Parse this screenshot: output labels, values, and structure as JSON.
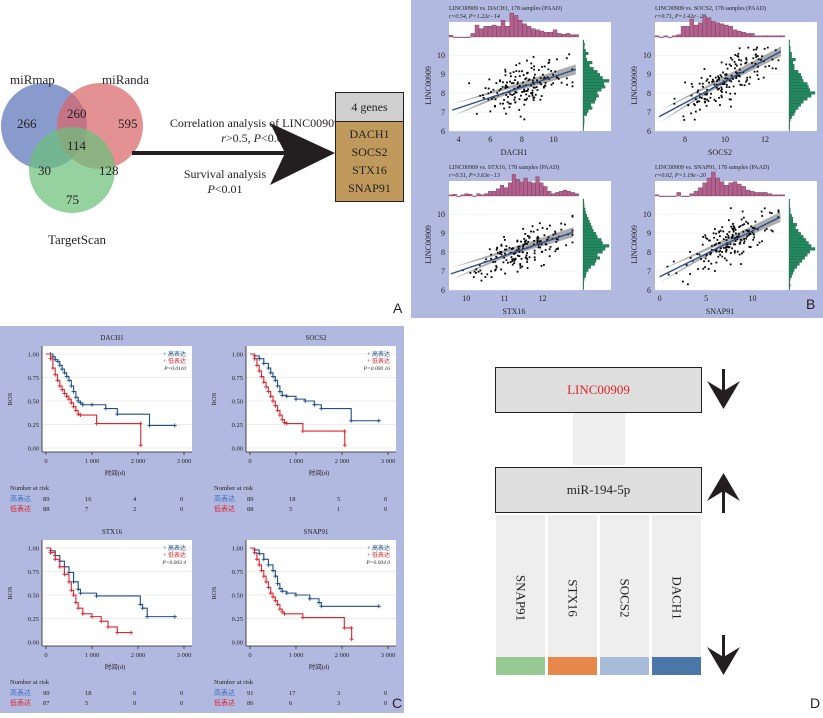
{
  "panel_labels": {
    "A": "A",
    "B": "B",
    "C": "C",
    "D": "D"
  },
  "colors": {
    "panel_bg": "#b1b9e1",
    "venn_mirmap": "#5b74b8",
    "venn_miranda": "#d9676b",
    "venn_targetscan": "#6cc07c",
    "gene_box_header": "#cfcfcf",
    "gene_box_body": "#c09a5c",
    "scatter_hist_top": "#b4608e",
    "scatter_hist_right": "#1f8a5e",
    "regression_line": "#2e4e8c",
    "km_high": "#1d4f87",
    "km_low": "#e0242b",
    "lnc_text": "#e0242b",
    "bar_snap91": "#97c994",
    "bar_stx16": "#e8874a",
    "bar_socs2": "#a6bcd8",
    "bar_dach1": "#4a77a8"
  },
  "panelA": {
    "venn": {
      "sets": [
        "miRmap",
        "miRanda",
        "TargetScan"
      ],
      "regions": {
        "miRmap_only": "266",
        "miRanda_only": "595",
        "TargetScan_only": "75",
        "miRmap_miRanda": "260",
        "miRmap_TargetScan": "30",
        "miRanda_TargetScan": "128",
        "all_three": "114"
      }
    },
    "arrow_text_top_line1": "Correlation analysis of LINC00909",
    "arrow_text_top_line2_r": "r",
    "arrow_text_top_line2_rest": ">0.5, ",
    "arrow_text_top_line2_p": "P",
    "arrow_text_top_line2_end": "<0.01",
    "arrow_text_bottom_line1": "Survival analysis",
    "arrow_text_bottom_line2_p": "P",
    "arrow_text_bottom_line2_end": "<0.01",
    "gene_box": {
      "header": "4 genes",
      "genes": [
        "DACH1",
        "SOCS2",
        "STX16",
        "SNAP91"
      ]
    }
  },
  "chart_data": [
    {
      "type": "venn",
      "id": "A-venn",
      "sets": [
        "miRmap",
        "miRanda",
        "TargetScan"
      ],
      "values": {
        "miRmap": 266,
        "miRanda": 595,
        "TargetScan": 75,
        "miRmap&miRanda": 260,
        "miRmap&TargetScan": 30,
        "miRanda&TargetScan": 128,
        "miRmap&miRanda&TargetScan": 114
      }
    },
    {
      "type": "scatter",
      "id": "B1",
      "title": "LINC00909 vs. DACH1, 178 samples (PAAD)",
      "subtitle_r": "r=0.54, ",
      "subtitle_p": "P=1.22e−14",
      "xlabel": "DACH1",
      "ylabel": "LINC00909",
      "xlim": [
        3.4,
        11.6
      ],
      "ylim": [
        6,
        10.8
      ],
      "xticks": [
        "4",
        "6",
        "8",
        "10"
      ],
      "xtick_values": [
        4,
        6,
        8,
        10
      ],
      "yticks": [
        "6",
        "7",
        "8",
        "9",
        "10"
      ],
      "ytick_values": [
        6,
        7,
        8,
        9,
        10
      ],
      "regression": {
        "x": [
          3.6,
          11.4
        ],
        "y": [
          7.1,
          9.25
        ]
      },
      "top_hist": [
        0.08,
        0,
        0,
        0,
        0,
        0.15,
        0.5,
        0.35,
        0.45,
        0.45,
        0.5,
        0.45,
        0.7,
        0.45,
        1.0,
        0.9,
        0.7,
        0.55,
        0.45,
        0.35,
        0.3,
        0.25,
        0.2,
        0.2,
        0.3,
        0.15,
        0.12,
        0.15,
        0.1,
        0.1
      ],
      "right_hist": [
        0.02,
        0.03,
        0.04,
        0.05,
        0.04,
        0.15,
        0.2,
        0.35,
        0.3,
        0.45,
        0.5,
        0.6,
        0.55,
        0.7,
        0.85,
        0.8,
        1.0,
        0.75,
        0.65,
        0.55,
        0.4,
        0.25,
        0.35,
        0.15,
        0.1,
        0.2,
        0.1,
        0.05,
        0.06,
        0.03
      ]
    },
    {
      "type": "scatter",
      "id": "B2",
      "title": "LINC00909 vs. SOCS2, 178 samples (PAAD)",
      "subtitle_r": "r=0.71, ",
      "subtitle_p": "P=1.42e−28",
      "xlabel": "SOCS2",
      "ylabel": "LINC00909",
      "xlim": [
        6.5,
        13.0
      ],
      "ylim": [
        6,
        10.8
      ],
      "xticks": [
        "8",
        "10",
        "12"
      ],
      "xtick_values": [
        8,
        10,
        12
      ],
      "yticks": [
        "6",
        "7",
        "8",
        "9",
        "10"
      ],
      "ytick_values": [
        6,
        7,
        8,
        9,
        10
      ],
      "regression": {
        "x": [
          6.7,
          12.8
        ],
        "y": [
          6.75,
          10.2
        ]
      },
      "top_hist": [
        0.05,
        0,
        0.05,
        0,
        0.05,
        0.1,
        0.45,
        0.45,
        0.75,
        0.5,
        0.6,
        0.85,
        0.8,
        0.65,
        0.6,
        0.55,
        0.5,
        0.45,
        0.3,
        0.25,
        0.2,
        0.15,
        0.15,
        0.05,
        0.05,
        0.05,
        0.05,
        0.05,
        0.05,
        0.05
      ],
      "right_hist": [
        0.02,
        0.03,
        0.02,
        0.05,
        0.1,
        0.2,
        0.25,
        0.35,
        0.45,
        0.55,
        0.7,
        0.85,
        1.0,
        0.8,
        0.75,
        0.7,
        0.55,
        0.5,
        0.45,
        0.35,
        0.2,
        0.2,
        0.15,
        0.25,
        0.1,
        0.1,
        0.05,
        0.05,
        0.02,
        0.02
      ]
    },
    {
      "type": "scatter",
      "id": "B3",
      "title": "LINC00909 vs. STX16, 178 samples (PAAD)",
      "subtitle_r": "r=0.51, ",
      "subtitle_p": "P=3.63e−13",
      "xlabel": "STX16",
      "ylabel": "LINC00909",
      "xlim": [
        9.55,
        12.95
      ],
      "ylim": [
        6,
        10.8
      ],
      "xticks": [
        "10",
        "11",
        "12"
      ],
      "xtick_values": [
        10,
        11,
        12
      ],
      "yticks": [
        "6",
        "7",
        "8",
        "9",
        "10"
      ],
      "ytick_values": [
        6,
        7,
        8,
        9,
        10
      ],
      "regression": {
        "x": [
          9.6,
          12.8
        ],
        "y": [
          6.85,
          9.05
        ]
      },
      "top_hist": [
        0.05,
        0.08,
        0,
        0.05,
        0.1,
        0.08,
        0,
        0.1,
        0.05,
        0.1,
        0.2,
        0.2,
        0.3,
        0.45,
        0.35,
        0.55,
        0.9,
        0.7,
        0.6,
        0.75,
        0.6,
        0.55,
        0.8,
        0.55,
        0.4,
        0.2,
        0.1,
        0.15,
        0.2,
        0.25,
        0.2,
        0.15,
        0.1
      ],
      "right_hist": [
        0.02,
        0.03,
        0.03,
        0.05,
        0.1,
        0.12,
        0.2,
        0.3,
        0.45,
        0.5,
        0.65,
        0.55,
        0.75,
        0.85,
        1.0,
        0.75,
        0.7,
        0.55,
        0.5,
        0.4,
        0.35,
        0.3,
        0.25,
        0.2,
        0.15,
        0.1,
        0.08,
        0.05,
        0.04,
        0.03
      ]
    },
    {
      "type": "scatter",
      "id": "B4",
      "title": "LINC00909 vs. SNAP91, 178 samples (PAAD)",
      "subtitle_r": "r=0.62, ",
      "subtitle_p": "P=1.19e−20",
      "xlabel": "SNAP91",
      "ylabel": "LINC00909",
      "xlim": [
        -0.5,
        13.5
      ],
      "ylim": [
        6,
        10.8
      ],
      "xticks": [
        "0",
        "5",
        "10"
      ],
      "xtick_values": [
        0,
        5,
        10
      ],
      "yticks": [
        "6",
        "7",
        "8",
        "9",
        "10"
      ],
      "ytick_values": [
        6,
        7,
        8,
        9,
        10
      ],
      "regression": {
        "x": [
          0,
          13
        ],
        "y": [
          6.7,
          9.85
        ]
      },
      "top_hist": [
        0.05,
        0,
        0,
        0,
        0,
        0.15,
        0,
        0,
        0.1,
        0.2,
        0.35,
        0.55,
        0.75,
        1.0,
        0.75,
        0.6,
        0.45,
        0.55,
        0.6,
        0.5,
        0.4,
        0.25,
        0.2,
        0.15,
        0.15,
        0.15,
        0.1,
        0.05,
        0.05,
        0.05
      ],
      "right_hist": [
        0.03,
        0.05,
        0.03,
        0.05,
        0.1,
        0.15,
        0.2,
        0.3,
        0.4,
        0.5,
        0.6,
        0.7,
        0.8,
        1.0,
        0.85,
        0.75,
        0.65,
        0.55,
        0.45,
        0.35,
        0.25,
        0.3,
        0.15,
        0.15,
        0.1,
        0.05,
        0.05,
        0.03,
        0.02,
        0.02
      ]
    },
    {
      "type": "line",
      "subtype": "kaplan-meier",
      "id": "C1",
      "title": "DACH1",
      "xlabel": "时间(d)",
      "ylabel": "ROS",
      "xlim": [
        0,
        3000
      ],
      "ylim": [
        0,
        1
      ],
      "xticks": [
        "0",
        "1 000",
        "2 000",
        "3 000"
      ],
      "xtick_values": [
        0,
        1000,
        2000,
        3000
      ],
      "yticks": [
        "0.00",
        "0.25",
        "0.50",
        "0.75",
        "1.00"
      ],
      "ytick_values": [
        0,
        0.25,
        0.5,
        0.75,
        1
      ],
      "legend": [
        "高表达",
        "低表达"
      ],
      "pvalue": "P=0.0110",
      "series": [
        {
          "name": "高表达",
          "x": [
            0,
            100,
            150,
            200,
            260,
            300,
            350,
            400,
            450,
            500,
            550,
            600,
            650,
            700,
            750,
            800,
            1000,
            1300,
            1550,
            2250,
            2800
          ],
          "y": [
            1.0,
            1.0,
            0.97,
            0.94,
            0.92,
            0.88,
            0.84,
            0.8,
            0.76,
            0.72,
            0.66,
            0.6,
            0.54,
            0.5,
            0.48,
            0.46,
            0.46,
            0.42,
            0.36,
            0.24,
            0.24
          ]
        },
        {
          "name": "低表达",
          "x": [
            0,
            100,
            150,
            200,
            250,
            300,
            350,
            400,
            450,
            500,
            550,
            600,
            650,
            700,
            750,
            1100,
            2050,
            2060
          ],
          "y": [
            1.0,
            0.95,
            0.85,
            0.78,
            0.72,
            0.66,
            0.62,
            0.58,
            0.55,
            0.52,
            0.48,
            0.44,
            0.4,
            0.36,
            0.35,
            0.26,
            0.26,
            0.03
          ]
        }
      ],
      "risk_table": {
        "header": "Number at risk",
        "rows": [
          {
            "label": "高表达",
            "values": [
              "89",
              "16",
              "4",
              "0"
            ]
          },
          {
            "label": "低表达",
            "values": [
              "88",
              "7",
              "2",
              "0"
            ]
          }
        ]
      }
    },
    {
      "type": "line",
      "subtype": "kaplan-meier",
      "id": "C2",
      "title": "SOCS2",
      "xlabel": "时间(d)",
      "ylabel": "ROS",
      "xlim": [
        0,
        3000
      ],
      "ylim": [
        0,
        1
      ],
      "xticks": [
        "0",
        "1 000",
        "2 000",
        "3 000"
      ],
      "xtick_values": [
        0,
        1000,
        2000,
        3000
      ],
      "yticks": [
        "0.00",
        "0.25",
        "0.50",
        "0.75",
        "1.00"
      ],
      "ytick_values": [
        0,
        0.25,
        0.5,
        0.75,
        1
      ],
      "legend": [
        "高表达",
        "低表达"
      ],
      "pvalue": "P=0.000 16",
      "series": [
        {
          "name": "高表达",
          "x": [
            0,
            100,
            200,
            300,
            400,
            450,
            500,
            550,
            600,
            650,
            700,
            800,
            1000,
            1200,
            1400,
            1550,
            2200,
            2800
          ],
          "y": [
            1.0,
            0.98,
            0.95,
            0.9,
            0.85,
            0.8,
            0.76,
            0.72,
            0.66,
            0.6,
            0.56,
            0.55,
            0.52,
            0.5,
            0.46,
            0.42,
            0.29,
            0.29
          ]
        },
        {
          "name": "低表达",
          "x": [
            0,
            100,
            150,
            200,
            250,
            300,
            350,
            400,
            450,
            500,
            550,
            600,
            650,
            700,
            750,
            800,
            1150,
            2050,
            2060
          ],
          "y": [
            1.0,
            0.95,
            0.88,
            0.82,
            0.76,
            0.7,
            0.65,
            0.6,
            0.55,
            0.5,
            0.45,
            0.4,
            0.35,
            0.3,
            0.27,
            0.26,
            0.18,
            0.18,
            0.03
          ]
        }
      ],
      "risk_table": {
        "header": "Number at risk",
        "rows": [
          {
            "label": "高表达",
            "values": [
              "89",
              "18",
              "5",
              "0"
            ]
          },
          {
            "label": "低表达",
            "values": [
              "88",
              "5",
              "1",
              "0"
            ]
          }
        ]
      }
    },
    {
      "type": "line",
      "subtype": "kaplan-meier",
      "id": "C3",
      "title": "STX16",
      "xlabel": "时间(d)",
      "ylabel": "ROS",
      "xlim": [
        0,
        3000
      ],
      "ylim": [
        0,
        1
      ],
      "xticks": [
        "0",
        "1 000",
        "2 000",
        "3 000"
      ],
      "xtick_values": [
        0,
        1000,
        2000,
        3000
      ],
      "yticks": [
        "0.00",
        "0.25",
        "0.50",
        "0.75",
        "1.00"
      ],
      "ytick_values": [
        0,
        0.25,
        0.5,
        0.75,
        1
      ],
      "legend": [
        "高表达",
        "低表达"
      ],
      "pvalue": "P=0.003 4",
      "series": [
        {
          "name": "高表达",
          "x": [
            0,
            100,
            200,
            300,
            400,
            500,
            600,
            700,
            750,
            1100,
            2050,
            2100,
            2200,
            2800
          ],
          "y": [
            1.0,
            0.97,
            0.92,
            0.86,
            0.8,
            0.74,
            0.64,
            0.56,
            0.52,
            0.49,
            0.4,
            0.36,
            0.27,
            0.27
          ]
        },
        {
          "name": "低表达",
          "x": [
            0,
            100,
            200,
            300,
            400,
            500,
            550,
            600,
            650,
            700,
            800,
            1000,
            1200,
            1350,
            1550,
            1850
          ],
          "y": [
            1.0,
            0.95,
            0.88,
            0.8,
            0.72,
            0.64,
            0.55,
            0.5,
            0.42,
            0.36,
            0.3,
            0.27,
            0.22,
            0.16,
            0.1,
            0.1
          ]
        }
      ],
      "risk_table": {
        "header": "Number at risk",
        "rows": [
          {
            "label": "高表达",
            "values": [
              "90",
              "18",
              "6",
              "0"
            ]
          },
          {
            "label": "低表达",
            "values": [
              "87",
              "5",
              "0",
              "0"
            ]
          }
        ]
      }
    },
    {
      "type": "line",
      "subtype": "kaplan-meier",
      "id": "C4",
      "title": "SNAP91",
      "xlabel": "时间(d)",
      "ylabel": "ROS",
      "xlim": [
        0,
        3000
      ],
      "ylim": [
        0,
        1
      ],
      "xticks": [
        "0",
        "1 000",
        "2 000",
        "3 000"
      ],
      "xtick_values": [
        0,
        1000,
        2000,
        3000
      ],
      "yticks": [
        "0.00",
        "0.25",
        "0.50",
        "0.75",
        "1.00"
      ],
      "ytick_values": [
        0,
        0.25,
        0.5,
        0.75,
        1
      ],
      "legend": [
        "高表达",
        "低表达"
      ],
      "pvalue": "P=0.004 0",
      "series": [
        {
          "name": "高表达",
          "x": [
            0,
            100,
            200,
            300,
            400,
            500,
            550,
            600,
            650,
            700,
            800,
            1000,
            1300,
            1500,
            1550,
            2800
          ],
          "y": [
            1.0,
            0.98,
            0.94,
            0.88,
            0.82,
            0.76,
            0.7,
            0.62,
            0.57,
            0.54,
            0.52,
            0.5,
            0.46,
            0.42,
            0.38,
            0.38
          ]
        },
        {
          "name": "低表达",
          "x": [
            0,
            100,
            150,
            200,
            250,
            300,
            350,
            400,
            450,
            500,
            550,
            600,
            650,
            700,
            750,
            1150,
            2050,
            2200,
            2210
          ],
          "y": [
            1.0,
            0.95,
            0.88,
            0.82,
            0.76,
            0.7,
            0.64,
            0.58,
            0.52,
            0.48,
            0.44,
            0.4,
            0.35,
            0.32,
            0.3,
            0.26,
            0.15,
            0.15,
            0.03
          ]
        }
      ],
      "risk_table": {
        "header": "Number at risk",
        "rows": [
          {
            "label": "高表达",
            "values": [
              "91",
              "17",
              "3",
              "0"
            ]
          },
          {
            "label": "低表达",
            "values": [
              "86",
              "6",
              "3",
              "0"
            ]
          }
        ]
      }
    }
  ],
  "panelD": {
    "lnc_label": "LINC00909",
    "mir_label": "miR-194-5p",
    "targets": [
      "SNAP91",
      "STX16",
      "SOCS2",
      "DACH1"
    ],
    "lnc_direction": "down",
    "mir_direction": "up",
    "targets_direction": "down"
  }
}
